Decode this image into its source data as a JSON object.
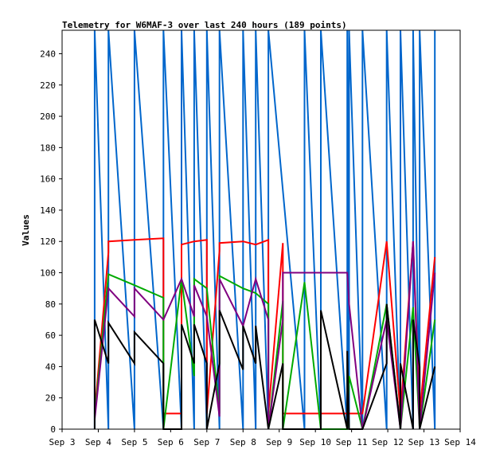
{
  "chart_data": {
    "type": "line",
    "title": "Telemetry for W6MAF-3 over last 240 hours (189 points)",
    "xlabel": "",
    "ylabel": "Values",
    "ylim": [
      0,
      255
    ],
    "y_ticks": [
      0,
      20,
      40,
      60,
      80,
      100,
      120,
      140,
      160,
      180,
      200,
      220,
      240
    ],
    "x_range": [
      "Sep 3",
      "Sep 14"
    ],
    "x_ticks": [
      "Sep 3",
      "Sep 4",
      "Sep 5",
      "Sep 6",
      "Sep 7",
      "Sep 8",
      "Sep 9",
      "Sep 10",
      "Sep 11",
      "Sep 12",
      "Sep 13",
      "Sep 14"
    ],
    "x_tick_days": [
      3,
      4,
      5,
      6,
      7,
      8,
      9,
      10,
      11,
      12,
      13,
      14
    ],
    "grid": false,
    "legend": "none",
    "series": [
      {
        "color": "#0066cc",
        "points": [
          [
            3.9,
            0
          ],
          [
            3.9,
            255
          ],
          [
            4.28,
            0
          ],
          [
            4.28,
            255
          ],
          [
            5.0,
            0
          ],
          [
            5.0,
            255
          ],
          [
            5.8,
            0
          ],
          [
            5.8,
            255
          ],
          [
            6.3,
            0
          ],
          [
            6.3,
            255
          ],
          [
            6.65,
            0
          ],
          [
            6.65,
            255
          ],
          [
            7.0,
            0
          ],
          [
            7.0,
            255
          ],
          [
            7.35,
            0
          ],
          [
            7.35,
            255
          ],
          [
            8.0,
            0
          ],
          [
            8.0,
            255
          ],
          [
            8.35,
            0
          ],
          [
            8.35,
            255
          ],
          [
            8.7,
            0
          ],
          [
            8.7,
            255
          ],
          [
            9.7,
            0
          ],
          [
            9.7,
            255
          ],
          [
            10.15,
            0
          ],
          [
            10.15,
            255
          ],
          [
            10.88,
            0
          ],
          [
            10.88,
            255
          ],
          [
            10.93,
            0
          ],
          [
            10.93,
            255
          ],
          [
            11.3,
            0
          ],
          [
            11.3,
            255
          ],
          [
            11.97,
            0
          ],
          [
            11.97,
            255
          ],
          [
            12.35,
            0
          ],
          [
            12.35,
            255
          ],
          [
            12.7,
            0
          ],
          [
            12.7,
            255
          ],
          [
            12.88,
            0
          ],
          [
            12.88,
            255
          ],
          [
            13.3,
            0
          ],
          [
            13.3,
            255
          ]
        ]
      },
      {
        "color": "#ff0000",
        "points": [
          [
            3.9,
            10
          ],
          [
            4.28,
            113
          ],
          [
            4.28,
            120
          ],
          [
            5.0,
            121
          ],
          [
            5.8,
            122
          ],
          [
            5.8,
            10
          ],
          [
            6.3,
            10
          ],
          [
            6.3,
            118
          ],
          [
            6.65,
            120
          ],
          [
            7.0,
            121
          ],
          [
            7.0,
            10
          ],
          [
            7.35,
            114
          ],
          [
            7.35,
            119
          ],
          [
            8.0,
            120
          ],
          [
            8.35,
            118
          ],
          [
            8.7,
            121
          ],
          [
            8.7,
            10
          ],
          [
            9.1,
            119
          ],
          [
            9.1,
            10
          ],
          [
            9.7,
            10
          ],
          [
            10.15,
            10
          ],
          [
            10.88,
            10
          ],
          [
            10.93,
            10
          ],
          [
            11.3,
            10
          ],
          [
            11.97,
            120
          ],
          [
            12.35,
            10
          ],
          [
            12.7,
            120
          ],
          [
            12.88,
            10
          ],
          [
            13.3,
            110
          ]
        ]
      },
      {
        "color": "#00aa00",
        "points": [
          [
            3.9,
            8
          ],
          [
            4.28,
            99
          ],
          [
            5.0,
            92
          ],
          [
            5.8,
            84
          ],
          [
            5.8,
            0
          ],
          [
            6.3,
            96
          ],
          [
            6.65,
            34
          ],
          [
            6.65,
            96
          ],
          [
            7.0,
            90
          ],
          [
            7.35,
            10
          ],
          [
            7.35,
            98
          ],
          [
            8.0,
            90
          ],
          [
            8.35,
            87
          ],
          [
            8.7,
            80
          ],
          [
            8.7,
            0
          ],
          [
            9.1,
            82
          ],
          [
            9.1,
            0
          ],
          [
            9.7,
            94
          ],
          [
            10.15,
            0
          ],
          [
            10.88,
            0
          ],
          [
            10.93,
            34
          ],
          [
            11.3,
            0
          ],
          [
            11.97,
            80
          ],
          [
            12.35,
            0
          ],
          [
            12.7,
            78
          ],
          [
            12.88,
            0
          ],
          [
            13.3,
            70
          ]
        ]
      },
      {
        "color": "#800080",
        "points": [
          [
            3.9,
            6
          ],
          [
            4.28,
            90
          ],
          [
            5.0,
            72
          ],
          [
            5.0,
            90
          ],
          [
            5.8,
            70
          ],
          [
            6.3,
            96
          ],
          [
            6.65,
            72
          ],
          [
            6.65,
            92
          ],
          [
            7.0,
            72
          ],
          [
            7.35,
            8
          ],
          [
            7.35,
            96
          ],
          [
            8.0,
            66
          ],
          [
            8.35,
            96
          ],
          [
            8.7,
            70
          ],
          [
            8.7,
            0
          ],
          [
            9.1,
            70
          ],
          [
            9.1,
            100
          ],
          [
            9.7,
            100
          ],
          [
            10.15,
            100
          ],
          [
            10.88,
            100
          ],
          [
            10.93,
            80
          ],
          [
            11.3,
            0
          ],
          [
            11.97,
            70
          ],
          [
            12.35,
            0
          ],
          [
            12.7,
            120
          ],
          [
            12.88,
            0
          ],
          [
            13.3,
            100
          ]
        ]
      },
      {
        "color": "#000000",
        "points": [
          [
            3.9,
            0
          ],
          [
            3.9,
            70
          ],
          [
            4.28,
            42
          ],
          [
            4.28,
            68
          ],
          [
            5.0,
            42
          ],
          [
            5.0,
            62
          ],
          [
            5.8,
            42
          ],
          [
            5.8,
            0
          ],
          [
            6.3,
            0
          ],
          [
            6.3,
            67
          ],
          [
            6.65,
            42
          ],
          [
            6.65,
            67
          ],
          [
            7.0,
            42
          ],
          [
            7.0,
            0
          ],
          [
            7.35,
            42
          ],
          [
            7.35,
            76
          ],
          [
            8.0,
            38
          ],
          [
            8.0,
            66
          ],
          [
            8.35,
            42
          ],
          [
            8.35,
            66
          ],
          [
            8.7,
            0
          ],
          [
            9.1,
            42
          ],
          [
            9.1,
            0
          ],
          [
            9.7,
            0
          ],
          [
            10.15,
            0
          ],
          [
            10.15,
            76
          ],
          [
            10.88,
            0
          ],
          [
            10.88,
            50
          ],
          [
            10.93,
            0
          ],
          [
            11.3,
            0
          ],
          [
            11.97,
            42
          ],
          [
            11.97,
            80
          ],
          [
            12.35,
            0
          ],
          [
            12.35,
            42
          ],
          [
            12.7,
            0
          ],
          [
            12.7,
            70
          ],
          [
            12.88,
            40
          ],
          [
            12.88,
            0
          ],
          [
            13.3,
            40
          ]
        ]
      }
    ]
  }
}
